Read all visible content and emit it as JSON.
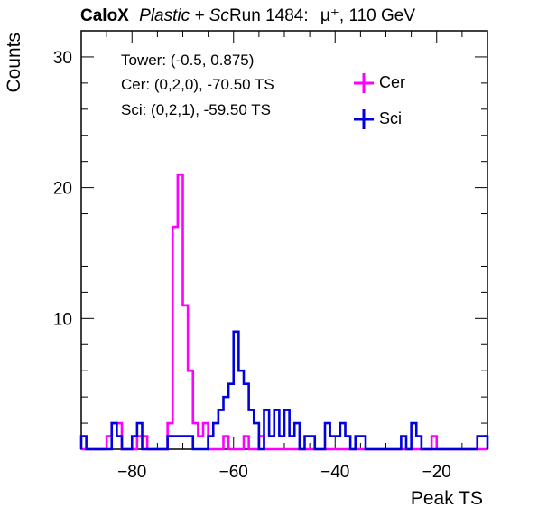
{
  "header": {
    "brand": "CaloX",
    "material": "Plastic + Sc",
    "run": "Run 1484:",
    "beam": "μ⁺, 110 GeV"
  },
  "annotations": {
    "tower": "Tower: (-0.5, 0.875)",
    "cer": "Cer: (0,2,0), -70.50 TS",
    "sci": "Sci: (0,2,1), -59.50 TS"
  },
  "chart_data": {
    "type": "histogram",
    "xlabel": "Peak TS",
    "ylabel": "Counts",
    "xlim": [
      -90,
      -10
    ],
    "ylim": [
      0,
      32
    ],
    "xticks": [
      -80,
      -60,
      -40,
      -20
    ],
    "yticks": [
      10,
      20,
      30
    ],
    "bin_width": 1,
    "colors": {
      "Cer": "#ff00ff",
      "Sci": "#0000dd"
    },
    "legend_position": "top-right",
    "series": [
      {
        "name": "Cer",
        "bins": [
          {
            "x": -85,
            "y": 1
          },
          {
            "x": -84,
            "y": 2
          },
          {
            "x": -83,
            "y": 2
          },
          {
            "x": -79,
            "y": 1
          },
          {
            "x": -78,
            "y": 1
          },
          {
            "x": -73,
            "y": 2
          },
          {
            "x": -72,
            "y": 17
          },
          {
            "x": -71,
            "y": 21
          },
          {
            "x": -70,
            "y": 11
          },
          {
            "x": -69,
            "y": 6
          },
          {
            "x": -68,
            "y": 2
          },
          {
            "x": -67,
            "y": 1
          },
          {
            "x": -66,
            "y": 2
          },
          {
            "x": -62,
            "y": 1
          },
          {
            "x": -58,
            "y": 1
          },
          {
            "x": -55,
            "y": 1
          },
          {
            "x": -21,
            "y": 1
          }
        ]
      },
      {
        "name": "Sci",
        "bins": [
          {
            "x": -90,
            "y": 1
          },
          {
            "x": -84,
            "y": 2
          },
          {
            "x": -83,
            "y": 1
          },
          {
            "x": -80,
            "y": 1
          },
          {
            "x": -79,
            "y": 2
          },
          {
            "x": -73,
            "y": 1
          },
          {
            "x": -72,
            "y": 1
          },
          {
            "x": -71,
            "y": 1
          },
          {
            "x": -70,
            "y": 1
          },
          {
            "x": -69,
            "y": 1
          },
          {
            "x": -65,
            "y": 1
          },
          {
            "x": -64,
            "y": 2
          },
          {
            "x": -63,
            "y": 3
          },
          {
            "x": -62,
            "y": 4
          },
          {
            "x": -61,
            "y": 5
          },
          {
            "x": -60,
            "y": 9
          },
          {
            "x": -59,
            "y": 6
          },
          {
            "x": -58,
            "y": 5
          },
          {
            "x": -57,
            "y": 3
          },
          {
            "x": -56,
            "y": 2
          },
          {
            "x": -54,
            "y": 3
          },
          {
            "x": -53,
            "y": 1
          },
          {
            "x": -52,
            "y": 3
          },
          {
            "x": -51,
            "y": 1
          },
          {
            "x": -50,
            "y": 3
          },
          {
            "x": -49,
            "y": 1
          },
          {
            "x": -48,
            "y": 2
          },
          {
            "x": -46,
            "y": 1
          },
          {
            "x": -45,
            "y": 1
          },
          {
            "x": -42,
            "y": 2
          },
          {
            "x": -41,
            "y": 1
          },
          {
            "x": -40,
            "y": 1
          },
          {
            "x": -39,
            "y": 2
          },
          {
            "x": -38,
            "y": 1
          },
          {
            "x": -36,
            "y": 1
          },
          {
            "x": -35,
            "y": 1
          },
          {
            "x": -27,
            "y": 1
          },
          {
            "x": -25,
            "y": 2
          },
          {
            "x": -24,
            "y": 1
          },
          {
            "x": -12,
            "y": 1
          },
          {
            "x": -11,
            "y": 1
          }
        ]
      }
    ]
  }
}
